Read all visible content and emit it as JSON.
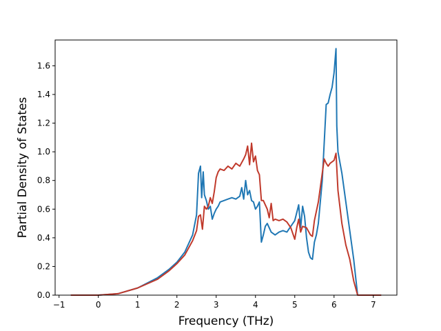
{
  "chart_data": {
    "type": "line",
    "title": "",
    "xlabel": "Frequency (THz)",
    "ylabel": "Partial Density of States",
    "xlim": [
      -1.1,
      7.6
    ],
    "ylim": [
      0.0,
      1.78
    ],
    "xticks": [
      -1,
      0,
      1,
      2,
      3,
      4,
      5,
      6,
      7
    ],
    "xtick_labels": [
      "−1",
      "0",
      "1",
      "2",
      "3",
      "4",
      "5",
      "6",
      "7"
    ],
    "yticks": [
      0.0,
      0.2,
      0.4,
      0.6,
      0.8,
      1.0,
      1.2,
      1.4,
      1.6
    ],
    "ytick_labels": [
      "0.0",
      "0.2",
      "0.4",
      "0.6",
      "0.8",
      "1.0",
      "1.2",
      "1.4",
      "1.6"
    ],
    "grid": false,
    "legend": "none",
    "series": [
      {
        "color": "#1f77b4",
        "x": [
          -0.7,
          0.0,
          0.5,
          1.0,
          1.5,
          1.8,
          2.0,
          2.2,
          2.4,
          2.5,
          2.55,
          2.6,
          2.63,
          2.67,
          2.7,
          2.75,
          2.8,
          2.85,
          2.9,
          2.95,
          3.0,
          3.05,
          3.1,
          3.2,
          3.3,
          3.4,
          3.5,
          3.6,
          3.65,
          3.7,
          3.75,
          3.8,
          3.85,
          3.9,
          3.95,
          4.0,
          4.05,
          4.1,
          4.15,
          4.2,
          4.25,
          4.3,
          4.35,
          4.4,
          4.5,
          4.6,
          4.7,
          4.8,
          4.9,
          5.0,
          5.1,
          5.15,
          5.2,
          5.25,
          5.3,
          5.35,
          5.4,
          5.45,
          5.5,
          5.55,
          5.6,
          5.7,
          5.8,
          5.85,
          5.9,
          5.95,
          6.0,
          6.05,
          6.07,
          6.1,
          6.2,
          6.3,
          6.4,
          6.5,
          6.6,
          7.2
        ],
        "y": [
          0.0,
          0.0,
          0.01,
          0.05,
          0.12,
          0.18,
          0.23,
          0.3,
          0.42,
          0.56,
          0.85,
          0.9,
          0.68,
          0.86,
          0.7,
          0.66,
          0.6,
          0.62,
          0.53,
          0.57,
          0.6,
          0.62,
          0.65,
          0.66,
          0.67,
          0.68,
          0.67,
          0.69,
          0.75,
          0.67,
          0.8,
          0.7,
          0.73,
          0.66,
          0.65,
          0.6,
          0.62,
          0.65,
          0.37,
          0.42,
          0.48,
          0.5,
          0.47,
          0.44,
          0.42,
          0.44,
          0.45,
          0.44,
          0.48,
          0.52,
          0.63,
          0.47,
          0.62,
          0.55,
          0.4,
          0.3,
          0.26,
          0.25,
          0.37,
          0.42,
          0.5,
          0.8,
          1.33,
          1.34,
          1.4,
          1.45,
          1.55,
          1.72,
          1.18,
          1.0,
          0.85,
          0.65,
          0.45,
          0.25,
          0.0,
          0.0
        ]
      },
      {
        "color": "#c0392b",
        "x": [
          -0.7,
          0.0,
          0.5,
          1.0,
          1.5,
          1.8,
          2.0,
          2.2,
          2.4,
          2.5,
          2.55,
          2.6,
          2.65,
          2.7,
          2.75,
          2.8,
          2.85,
          2.9,
          2.95,
          3.0,
          3.05,
          3.1,
          3.2,
          3.3,
          3.4,
          3.5,
          3.6,
          3.7,
          3.75,
          3.8,
          3.85,
          3.9,
          3.95,
          4.0,
          4.05,
          4.1,
          4.15,
          4.2,
          4.3,
          4.35,
          4.4,
          4.45,
          4.5,
          4.6,
          4.7,
          4.8,
          4.9,
          5.0,
          5.05,
          5.1,
          5.15,
          5.2,
          5.3,
          5.4,
          5.45,
          5.5,
          5.6,
          5.7,
          5.75,
          5.8,
          5.85,
          5.9,
          6.0,
          6.05,
          6.1,
          6.2,
          6.3,
          6.4,
          6.5,
          6.6,
          7.2
        ],
        "y": [
          0.0,
          0.0,
          0.01,
          0.05,
          0.11,
          0.17,
          0.22,
          0.28,
          0.38,
          0.45,
          0.55,
          0.56,
          0.46,
          0.62,
          0.6,
          0.62,
          0.68,
          0.64,
          0.72,
          0.82,
          0.86,
          0.88,
          0.87,
          0.9,
          0.88,
          0.92,
          0.9,
          0.95,
          0.98,
          1.04,
          0.91,
          1.06,
          0.93,
          0.97,
          0.87,
          0.84,
          0.66,
          0.66,
          0.6,
          0.54,
          0.64,
          0.52,
          0.53,
          0.52,
          0.53,
          0.51,
          0.47,
          0.39,
          0.47,
          0.53,
          0.44,
          0.48,
          0.47,
          0.42,
          0.41,
          0.52,
          0.65,
          0.85,
          0.95,
          0.92,
          0.9,
          0.92,
          0.94,
          0.99,
          0.73,
          0.5,
          0.35,
          0.25,
          0.1,
          0.0,
          0.0
        ]
      }
    ]
  }
}
